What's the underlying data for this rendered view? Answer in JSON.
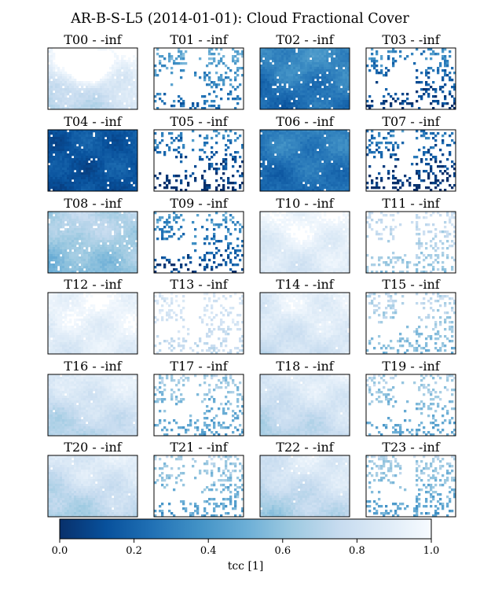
{
  "chart_data": {
    "type": "heatmap",
    "title": "AR-B-S-L5 (2014-01-01): Cloud Fractional Cover",
    "variable": "tcc",
    "colormap": "Blues_r",
    "panels": [
      {
        "label": "T00 - -inf",
        "mode": "field",
        "base": 0.84,
        "blob": 0.38,
        "white_cut": 0.96,
        "strength": 0.55
      },
      {
        "label": "T01 - -inf",
        "mode": "sparse",
        "base": 0.62,
        "strength": 0.5
      },
      {
        "label": "T02 - -inf",
        "mode": "field",
        "base": 0.28,
        "blob": 0.08,
        "white_cut": 0.96,
        "strength": 0.3
      },
      {
        "label": "T03 - -inf",
        "mode": "sparse",
        "base": 0.5,
        "strength": 0.6
      },
      {
        "label": "T04 - -inf",
        "mode": "field",
        "base": 0.14,
        "blob": 0.0,
        "white_cut": 0.97,
        "strength": 0.1
      },
      {
        "label": "T05 - -inf",
        "mode": "sparse",
        "base": 0.45,
        "strength": 0.6
      },
      {
        "label": "T06 - -inf",
        "mode": "field",
        "base": 0.26,
        "blob": 0.05,
        "white_cut": 0.97,
        "strength": 0.2
      },
      {
        "label": "T07 - -inf",
        "mode": "sparse",
        "base": 0.42,
        "strength": 0.6
      },
      {
        "label": "T08 - -inf",
        "mode": "field",
        "base": 0.62,
        "blob": 0.12,
        "white_cut": 0.96,
        "strength": 0.3
      },
      {
        "label": "T09 - -inf",
        "mode": "sparse",
        "base": 0.55,
        "strength": 0.6
      },
      {
        "label": "T10 - -inf",
        "mode": "field",
        "base": 0.9,
        "blob": 0.08,
        "white_cut": 0.99,
        "strength": 0.25
      },
      {
        "label": "T11 - -inf",
        "mode": "sparse",
        "base": 0.85,
        "strength": 0.3
      },
      {
        "label": "T12 - -inf",
        "mode": "field",
        "base": 0.92,
        "blob": 0.05,
        "white_cut": 0.99,
        "strength": 0.2
      },
      {
        "label": "T13 - -inf",
        "mode": "sparse",
        "base": 0.9,
        "strength": 0.2
      },
      {
        "label": "T14 - -inf",
        "mode": "field",
        "base": 0.86,
        "blob": 0.05,
        "white_cut": 0.99,
        "strength": 0.3
      },
      {
        "label": "T15 - -inf",
        "mode": "sparse",
        "base": 0.82,
        "strength": 0.35
      },
      {
        "label": "T16 - -inf",
        "mode": "field",
        "base": 0.8,
        "blob": 0.05,
        "white_cut": 0.99,
        "strength": 0.45
      },
      {
        "label": "T17 - -inf",
        "mode": "sparse",
        "base": 0.75,
        "strength": 0.4
      },
      {
        "label": "T18 - -inf",
        "mode": "field",
        "base": 0.8,
        "blob": 0.05,
        "white_cut": 0.99,
        "strength": 0.45
      },
      {
        "label": "T19 - -inf",
        "mode": "sparse",
        "base": 0.78,
        "strength": 0.4
      },
      {
        "label": "T20 - -inf",
        "mode": "field",
        "base": 0.78,
        "blob": 0.05,
        "white_cut": 0.99,
        "strength": 0.5
      },
      {
        "label": "T21 - -inf",
        "mode": "sparse",
        "base": 0.76,
        "strength": 0.4
      },
      {
        "label": "T22 - -inf",
        "mode": "field",
        "base": 0.78,
        "blob": 0.05,
        "white_cut": 0.99,
        "strength": 0.5
      },
      {
        "label": "T23 - -inf",
        "mode": "sparse",
        "base": 0.76,
        "strength": 0.4
      }
    ],
    "colorbar": {
      "label": "tcc [1]",
      "range": [
        0.0,
        1.0
      ],
      "ticks": [
        0.0,
        0.2,
        0.4,
        0.6,
        0.8,
        1.0
      ],
      "tick_labels": [
        "0.0",
        "0.2",
        "0.4",
        "0.6",
        "0.8",
        "1.0"
      ]
    },
    "colors": {
      "low": "#08306b",
      "mid": "#6baed6",
      "high": "#f7fbff",
      "frame": "#000000"
    }
  }
}
